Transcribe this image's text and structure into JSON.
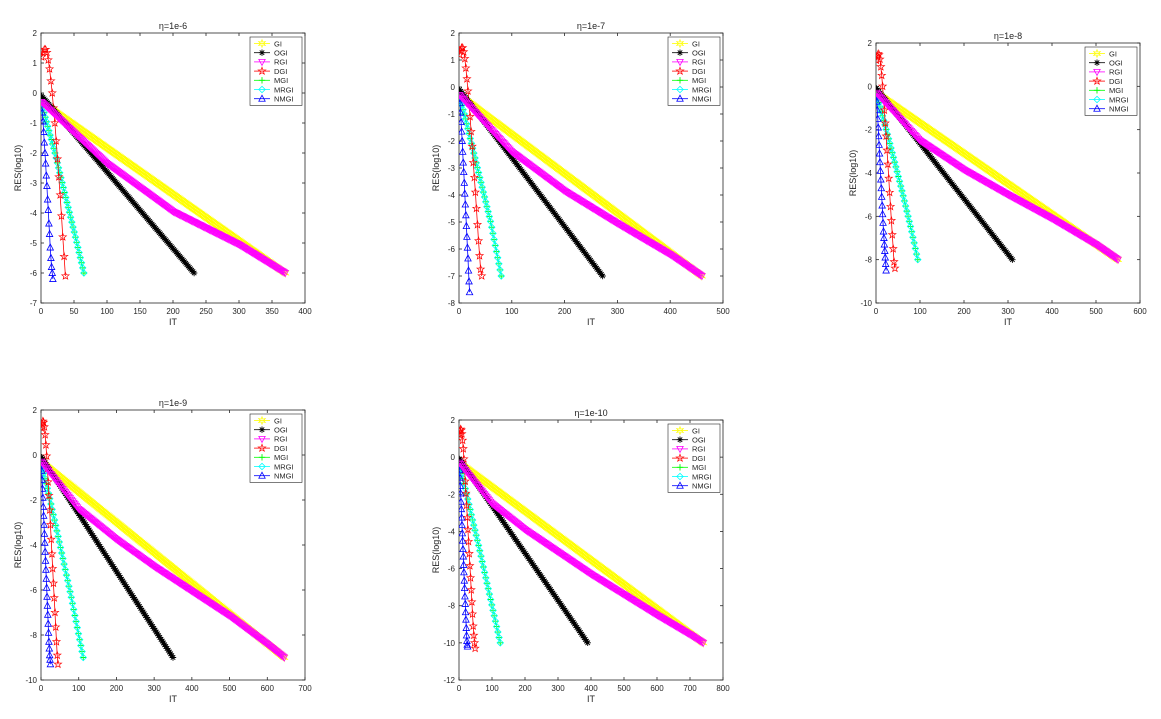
{
  "figure": {
    "series_styles": [
      {
        "name": "GI",
        "color": "#ffff00",
        "marker": "hexagram"
      },
      {
        "name": "OGI",
        "color": "#000000",
        "marker": "star"
      },
      {
        "name": "RGI",
        "color": "#ff00ff",
        "marker": "triangle-down"
      },
      {
        "name": "DGI",
        "color": "#ff0000",
        "marker": "pentagram"
      },
      {
        "name": "MGI",
        "color": "#00ff00",
        "marker": "plus"
      },
      {
        "name": "MRGI",
        "color": "#00ffff",
        "marker": "diamond"
      },
      {
        "name": "NMGI",
        "color": "#0000ff",
        "marker": "triangle-up"
      }
    ]
  },
  "chart_data": [
    {
      "type": "line",
      "title": "η=1e-6",
      "xlabel": "IT",
      "ylabel": "RES(log10)",
      "xlim": [
        0,
        400
      ],
      "ylim": [
        -7,
        2
      ],
      "xticks": [
        0,
        50,
        100,
        150,
        200,
        250,
        300,
        350,
        400
      ],
      "yticks": [
        -7,
        -6,
        -5,
        -4,
        -3,
        -2,
        -1,
        0,
        1,
        2
      ],
      "legend_position": "top-right",
      "series": [
        {
          "name": "GI",
          "x": [
            1,
            370
          ],
          "y": [
            -0.3,
            -6.0
          ]
        },
        {
          "name": "OGI",
          "x": [
            1,
            232
          ],
          "y": [
            -0.1,
            -6.0
          ]
        },
        {
          "name": "RGI",
          "x": [
            1,
            100,
            200,
            300,
            370
          ],
          "y": [
            -0.3,
            -2.35,
            -3.95,
            -5.05,
            -6.0
          ]
        },
        {
          "name": "DGI",
          "x": [
            1,
            3,
            5,
            7,
            9,
            11,
            13,
            15,
            17,
            19,
            21,
            23,
            25,
            27,
            29,
            31,
            33,
            35,
            37
          ],
          "y": [
            1.2,
            1.35,
            1.45,
            1.45,
            1.35,
            1.1,
            0.8,
            0.4,
            0.0,
            -0.5,
            -1.0,
            -1.6,
            -2.2,
            -2.8,
            -3.4,
            -4.1,
            -4.8,
            -5.45,
            -6.1
          ]
        },
        {
          "name": "MGI",
          "x": [
            1,
            10,
            20,
            30,
            40,
            50,
            65
          ],
          "y": [
            -0.35,
            -1.1,
            -1.9,
            -2.8,
            -3.7,
            -4.6,
            -6.0
          ]
        },
        {
          "name": "MRGI",
          "x": [
            1,
            10,
            20,
            30,
            40,
            50,
            65
          ],
          "y": [
            -0.35,
            -1.1,
            -1.9,
            -2.8,
            -3.7,
            -4.6,
            -6.0
          ]
        },
        {
          "name": "NMGI",
          "x": [
            1,
            2,
            3,
            4,
            5,
            6,
            7,
            8,
            9,
            10,
            11,
            12,
            13,
            14,
            15,
            16,
            17,
            18
          ],
          "y": [
            -0.3,
            -0.65,
            -0.95,
            -1.3,
            -1.65,
            -2.0,
            -2.35,
            -2.75,
            -3.1,
            -3.55,
            -3.9,
            -4.35,
            -4.7,
            -5.15,
            -5.5,
            -5.8,
            -6.0,
            -6.2
          ]
        }
      ]
    },
    {
      "type": "line",
      "title": "η=1e-7",
      "xlabel": "IT",
      "ylabel": "RES(log10)",
      "xlim": [
        0,
        500
      ],
      "ylim": [
        -8,
        2
      ],
      "xticks": [
        0,
        100,
        200,
        300,
        400,
        500
      ],
      "yticks": [
        -8,
        -7,
        -6,
        -5,
        -4,
        -3,
        -2,
        -1,
        0,
        1,
        2
      ],
      "legend_position": "top-right",
      "series": [
        {
          "name": "GI",
          "x": [
            1,
            460
          ],
          "y": [
            -0.3,
            -7.0
          ]
        },
        {
          "name": "OGI",
          "x": [
            1,
            272
          ],
          "y": [
            -0.1,
            -7.0
          ]
        },
        {
          "name": "RGI",
          "x": [
            1,
            100,
            200,
            300,
            400,
            460
          ],
          "y": [
            -0.3,
            -2.4,
            -3.85,
            -5.05,
            -6.2,
            -7.0
          ]
        },
        {
          "name": "DGI",
          "x": [
            1,
            3,
            5,
            7,
            9,
            11,
            13,
            15,
            17,
            19,
            21,
            23,
            25,
            27,
            29,
            31,
            33,
            35,
            37,
            39,
            41,
            43
          ],
          "y": [
            1.2,
            1.35,
            1.45,
            1.45,
            1.3,
            1.05,
            0.7,
            0.3,
            -0.15,
            -0.6,
            -1.1,
            -1.65,
            -2.2,
            -2.8,
            -3.35,
            -3.9,
            -4.5,
            -5.1,
            -5.7,
            -6.25,
            -6.75,
            -7.0
          ]
        },
        {
          "name": "MGI",
          "x": [
            1,
            10,
            20,
            30,
            40,
            50,
            60,
            80
          ],
          "y": [
            -0.35,
            -1.0,
            -1.8,
            -2.6,
            -3.4,
            -4.2,
            -5.0,
            -7.0
          ]
        },
        {
          "name": "MRGI",
          "x": [
            1,
            10,
            20,
            30,
            40,
            50,
            60,
            80
          ],
          "y": [
            -0.35,
            -1.0,
            -1.8,
            -2.6,
            -3.4,
            -4.2,
            -5.0,
            -7.0
          ]
        },
        {
          "name": "NMGI",
          "x": [
            1,
            2,
            3,
            4,
            5,
            6,
            7,
            8,
            9,
            10,
            11,
            12,
            13,
            14,
            15,
            16,
            17,
            18,
            19,
            20
          ],
          "y": [
            -0.3,
            -0.6,
            -0.95,
            -1.3,
            -1.65,
            -2.0,
            -2.4,
            -2.8,
            -3.15,
            -3.55,
            -3.95,
            -4.35,
            -4.75,
            -5.15,
            -5.55,
            -5.95,
            -6.35,
            -6.8,
            -7.2,
            -7.6
          ]
        }
      ]
    },
    {
      "type": "line",
      "title": "η=1e-8",
      "xlabel": "IT",
      "ylabel": "RES(log10)",
      "xlim": [
        0,
        600
      ],
      "ylim": [
        -10,
        2
      ],
      "xticks": [
        0,
        100,
        200,
        300,
        400,
        500,
        600
      ],
      "yticks": [
        -10,
        -8,
        -6,
        -4,
        -2,
        0,
        2
      ],
      "legend_position": "top-right",
      "series": [
        {
          "name": "GI",
          "x": [
            1,
            550
          ],
          "y": [
            -0.3,
            -8.0
          ]
        },
        {
          "name": "OGI",
          "x": [
            1,
            310
          ],
          "y": [
            -0.1,
            -8.0
          ]
        },
        {
          "name": "RGI",
          "x": [
            1,
            100,
            200,
            300,
            400,
            500,
            550
          ],
          "y": [
            -0.3,
            -2.5,
            -3.85,
            -5.0,
            -6.1,
            -7.3,
            -8.0
          ]
        },
        {
          "name": "DGI",
          "x": [
            1,
            3,
            5,
            7,
            9,
            11,
            13,
            15,
            17,
            19,
            21,
            23,
            25,
            27,
            29,
            31,
            33,
            35,
            37,
            39,
            41,
            43
          ],
          "y": [
            1.2,
            1.4,
            1.5,
            1.45,
            1.25,
            0.9,
            0.5,
            0.0,
            -0.55,
            -1.1,
            -1.7,
            -2.3,
            -2.95,
            -3.6,
            -4.25,
            -4.9,
            -5.55,
            -6.2,
            -6.85,
            -7.5,
            -8.1,
            -8.4
          ]
        },
        {
          "name": "MGI",
          "x": [
            1,
            10,
            20,
            40,
            60,
            80,
            95
          ],
          "y": [
            -0.35,
            -1.0,
            -1.75,
            -3.3,
            -4.9,
            -6.6,
            -8.0
          ]
        },
        {
          "name": "MRGI",
          "x": [
            1,
            10,
            20,
            40,
            60,
            80,
            95
          ],
          "y": [
            -0.35,
            -1.0,
            -1.75,
            -3.3,
            -4.9,
            -6.6,
            -8.0
          ]
        },
        {
          "name": "NMGI",
          "x": [
            1,
            2,
            3,
            4,
            5,
            6,
            7,
            8,
            9,
            10,
            11,
            12,
            13,
            14,
            15,
            16,
            17,
            18,
            19,
            20,
            21,
            22,
            23
          ],
          "y": [
            -0.3,
            -0.7,
            -1.1,
            -1.5,
            -1.9,
            -2.3,
            -2.7,
            -3.1,
            -3.5,
            -3.9,
            -4.3,
            -4.7,
            -5.1,
            -5.5,
            -5.9,
            -6.3,
            -6.7,
            -7.0,
            -7.3,
            -7.6,
            -7.9,
            -8.2,
            -8.5
          ]
        }
      ]
    },
    {
      "type": "line",
      "title": "η=1e-9",
      "xlabel": "IT",
      "ylabel": "RES(log10)",
      "xlim": [
        0,
        700
      ],
      "ylim": [
        -10,
        2
      ],
      "xticks": [
        0,
        100,
        200,
        300,
        400,
        500,
        600,
        700
      ],
      "yticks": [
        -10,
        -8,
        -6,
        -4,
        -2,
        0,
        2
      ],
      "legend_position": "top-right",
      "series": [
        {
          "name": "GI",
          "x": [
            1,
            645
          ],
          "y": [
            -0.3,
            -9.0
          ]
        },
        {
          "name": "OGI",
          "x": [
            1,
            350
          ],
          "y": [
            -0.1,
            -9.0
          ]
        },
        {
          "name": "RGI",
          "x": [
            1,
            100,
            200,
            300,
            400,
            500,
            600,
            645
          ],
          "y": [
            -0.3,
            -2.4,
            -3.75,
            -4.95,
            -6.05,
            -7.15,
            -8.4,
            -9.0
          ]
        },
        {
          "name": "DGI",
          "x": [
            1,
            3,
            5,
            7,
            9,
            11,
            13,
            15,
            17,
            19,
            21,
            23,
            25,
            27,
            29,
            31,
            33,
            35,
            37,
            39,
            41,
            43,
            45
          ],
          "y": [
            1.2,
            1.4,
            1.5,
            1.45,
            1.25,
            0.9,
            0.45,
            -0.05,
            -0.6,
            -1.2,
            -1.8,
            -2.45,
            -3.1,
            -3.75,
            -4.4,
            -5.05,
            -5.7,
            -6.35,
            -7.0,
            -7.65,
            -8.3,
            -8.9,
            -9.3
          ]
        },
        {
          "name": "MGI",
          "x": [
            1,
            10,
            20,
            40,
            60,
            80,
            100,
            112
          ],
          "y": [
            -0.35,
            -1.0,
            -1.7,
            -3.2,
            -4.75,
            -6.3,
            -8.0,
            -9.0
          ]
        },
        {
          "name": "MRGI",
          "x": [
            1,
            10,
            20,
            40,
            60,
            80,
            100,
            112
          ],
          "y": [
            -0.35,
            -1.0,
            -1.7,
            -3.2,
            -4.75,
            -6.3,
            -8.0,
            -9.0
          ]
        },
        {
          "name": "NMGI",
          "x": [
            1,
            2,
            3,
            4,
            5,
            6,
            7,
            8,
            9,
            10,
            11,
            12,
            13,
            14,
            15,
            16,
            17,
            18,
            19,
            20,
            21,
            22,
            23,
            24,
            25
          ],
          "y": [
            -0.3,
            -0.7,
            -1.1,
            -1.5,
            -1.9,
            -2.3,
            -2.7,
            -3.1,
            -3.5,
            -3.9,
            -4.3,
            -4.7,
            -5.1,
            -5.5,
            -5.9,
            -6.3,
            -6.7,
            -7.1,
            -7.5,
            -7.9,
            -8.3,
            -8.6,
            -8.9,
            -9.1,
            -9.3
          ]
        }
      ]
    },
    {
      "type": "line",
      "title": "η=1e-10",
      "xlabel": "IT",
      "ylabel": "RES(log10)",
      "xlim": [
        0,
        800
      ],
      "ylim": [
        -12,
        2
      ],
      "xticks": [
        0,
        100,
        200,
        300,
        400,
        500,
        600,
        700,
        800
      ],
      "yticks": [
        -12,
        -10,
        -8,
        -6,
        -4,
        -2,
        0,
        2
      ],
      "legend_position": "top-right",
      "series": [
        {
          "name": "GI",
          "x": [
            1,
            740
          ],
          "y": [
            -0.3,
            -10.0
          ]
        },
        {
          "name": "OGI",
          "x": [
            1,
            390
          ],
          "y": [
            -0.1,
            -10.0
          ]
        },
        {
          "name": "RGI",
          "x": [
            1,
            100,
            200,
            300,
            400,
            500,
            600,
            700,
            740
          ],
          "y": [
            -0.3,
            -2.5,
            -3.9,
            -5.1,
            -6.3,
            -7.4,
            -8.5,
            -9.55,
            -10.0
          ]
        },
        {
          "name": "DGI",
          "x": [
            1,
            3,
            5,
            7,
            9,
            11,
            13,
            15,
            17,
            19,
            21,
            23,
            25,
            27,
            29,
            31,
            33,
            35,
            37,
            39,
            41,
            43,
            45,
            47,
            49
          ],
          "y": [
            1.2,
            1.4,
            1.5,
            1.45,
            1.25,
            0.9,
            0.45,
            -0.1,
            -0.7,
            -1.3,
            -1.95,
            -2.6,
            -3.25,
            -3.9,
            -4.55,
            -5.2,
            -5.85,
            -6.5,
            -7.15,
            -7.8,
            -8.45,
            -9.1,
            -9.6,
            -10.0,
            -10.3
          ]
        },
        {
          "name": "MGI",
          "x": [
            1,
            10,
            20,
            40,
            60,
            80,
            100,
            125
          ],
          "y": [
            -0.35,
            -1.0,
            -1.75,
            -3.3,
            -4.8,
            -6.4,
            -8.0,
            -10.0
          ]
        },
        {
          "name": "MRGI",
          "x": [
            1,
            10,
            20,
            40,
            60,
            80,
            100,
            125
          ],
          "y": [
            -0.35,
            -1.0,
            -1.75,
            -3.3,
            -4.8,
            -6.4,
            -8.0,
            -10.0
          ]
        },
        {
          "name": "NMGI",
          "x": [
            1,
            2,
            3,
            4,
            5,
            6,
            7,
            8,
            9,
            10,
            11,
            12,
            13,
            14,
            15,
            16,
            17,
            18,
            19,
            20,
            21,
            22,
            23,
            24,
            25,
            26
          ],
          "y": [
            -0.3,
            -0.7,
            -1.1,
            -1.55,
            -1.95,
            -2.4,
            -2.8,
            -3.25,
            -3.65,
            -4.1,
            -4.5,
            -4.95,
            -5.35,
            -5.8,
            -6.2,
            -6.65,
            -7.05,
            -7.5,
            -7.9,
            -8.35,
            -8.75,
            -9.2,
            -9.6,
            -9.9,
            -10.1,
            -10.2
          ]
        }
      ]
    }
  ]
}
